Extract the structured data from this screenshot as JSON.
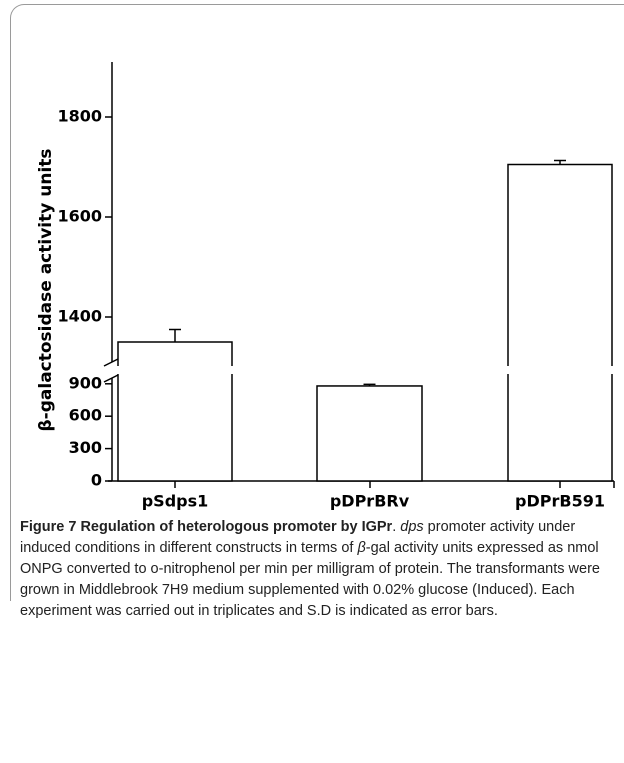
{
  "chart_data": {
    "type": "bar",
    "y_label": "β-galactosidase activity units",
    "categories": [
      "pSdps1",
      "pDPrBRv",
      "pDPrB591"
    ],
    "values": [
      1350,
      880,
      1705
    ],
    "errors": [
      25,
      15,
      8
    ],
    "color": "#ffffff",
    "edge_color": "#000000",
    "broken_axis": {
      "lower": {
        "ylim": [
          0,
          1000
        ],
        "yticks": [
          0,
          300,
          600,
          900
        ]
      },
      "upper": {
        "ylim": [
          1300,
          1900
        ],
        "yticks": [
          1400,
          1600,
          1800
        ]
      }
    }
  },
  "caption": {
    "label": "Figure 7",
    "title": "Regulation of heterologous promoter by IGPr",
    "parts": [
      ". ",
      "dps",
      " promoter activity under induced conditions in different constructs in terms of ",
      "β",
      "-gal activity units expressed as nmol ONPG converted to o-nitrophenol per min per milligram of protein. The transformants were grown in Middlebrook 7H9 medium supplemented with 0.02% glucose (Induced). Each experiment was carried out in triplicates and S.D is indicated as error bars."
    ]
  }
}
